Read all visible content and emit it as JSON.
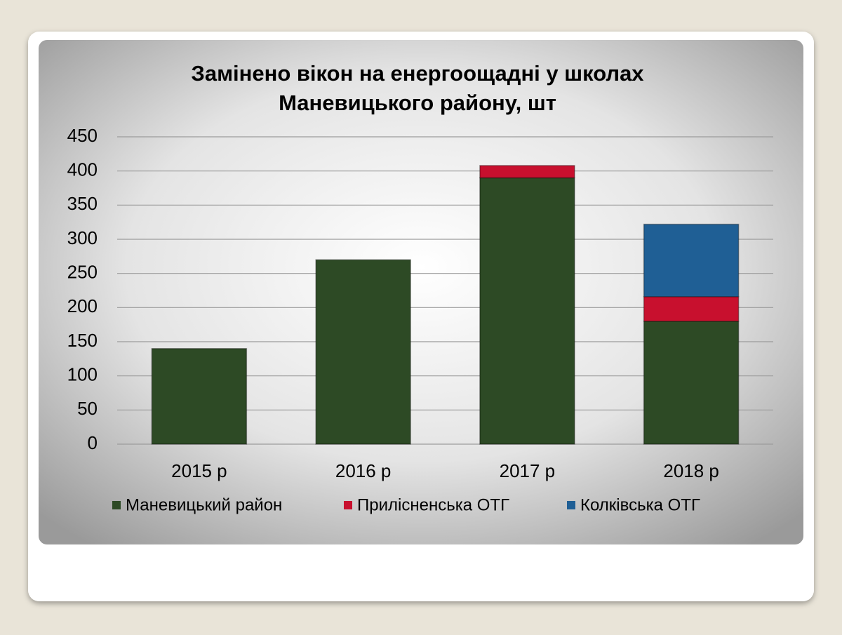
{
  "chart_data": {
    "type": "stacked_bar",
    "title": [
      "Замінено вікон на енергоощадні у школах",
      "Маневицького району, шт"
    ],
    "categories": [
      "2015 р",
      "2016 р",
      "2017 р",
      "2018 р"
    ],
    "series": [
      {
        "name": "Маневицький район",
        "color": "#2d4a25",
        "values": [
          140,
          270,
          390,
          180
        ]
      },
      {
        "name": "Прилісненська ОТГ",
        "color": "#c8102e",
        "values": [
          null,
          null,
          18,
          36
        ]
      },
      {
        "name": "Колківська ОТГ",
        "color": "#1f5f95",
        "values": [
          null,
          null,
          null,
          106
        ]
      }
    ],
    "ylim": [
      0,
      450
    ],
    "yticks": [
      0,
      50,
      100,
      150,
      200,
      250,
      300,
      350,
      400,
      450
    ],
    "grid": true,
    "legend": "bottom"
  }
}
